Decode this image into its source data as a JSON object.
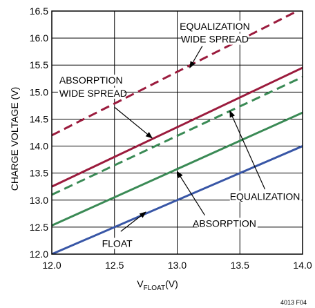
{
  "chart_data": {
    "type": "line",
    "xlabel": "V",
    "xlabel_sub": "FLOAT",
    "xlabel_unit": "(V)",
    "ylabel": "CHARGE VOLTAGE (V)",
    "xlim": [
      12.0,
      14.0
    ],
    "ylim": [
      12.0,
      16.5
    ],
    "grid": true,
    "x_ticks": [
      12.0,
      12.5,
      13.0,
      13.5,
      14.0
    ],
    "x_tick_labels": [
      "12.0",
      "12.5",
      "13.0",
      "13.5",
      "14.0"
    ],
    "y_ticks": [
      12.0,
      12.5,
      13.0,
      13.5,
      14.0,
      14.5,
      15.0,
      15.5,
      16.0,
      16.5
    ],
    "y_tick_labels": [
      "12.0",
      "12.5",
      "13.0",
      "13.5",
      "14.0",
      "14.5",
      "15.0",
      "15.5",
      "16.0",
      "16.5"
    ],
    "series": [
      {
        "key": "equalization-wide-spread",
        "x": [
          12.0,
          14.0
        ],
        "y": [
          14.2,
          16.55
        ],
        "color": "#9b1b3d",
        "dash": true
      },
      {
        "key": "absorption-wide-spread",
        "x": [
          12.0,
          14.0
        ],
        "y": [
          13.25,
          15.45
        ],
        "color": "#9b1b3d",
        "dash": false
      },
      {
        "key": "equalization",
        "x": [
          12.0,
          14.0
        ],
        "y": [
          13.1,
          15.28
        ],
        "color": "#3a8a55",
        "dash": true
      },
      {
        "key": "absorption",
        "x": [
          12.0,
          14.0
        ],
        "y": [
          12.53,
          14.62
        ],
        "color": "#3a8a55",
        "dash": false
      },
      {
        "key": "float",
        "x": [
          12.0,
          14.0
        ],
        "y": [
          12.0,
          14.0
        ],
        "color": "#3856a6",
        "dash": false
      }
    ],
    "annotations": [
      {
        "key": "equalization-wide-spread",
        "lines": [
          "EQUALIZATION",
          "WIDE SPREAD"
        ],
        "text_x": 13.3,
        "text_y": [
          16.22,
          15.98
        ],
        "anchor": "middle",
        "arrow_from": [
          13.2,
          15.85
        ],
        "arrow_to": [
          13.1,
          15.45
        ]
      },
      {
        "key": "absorption-wide-spread",
        "lines": [
          "ABSORPTION",
          "WIDE SPREAD"
        ],
        "text_x": 12.06,
        "text_y": [
          15.22,
          14.98
        ],
        "anchor": "start",
        "arrow_from": [
          12.5,
          14.72
        ],
        "arrow_to": [
          12.8,
          14.15
        ]
      },
      {
        "key": "equalization",
        "lines": [
          "EQUALIZATION"
        ],
        "text_x": 13.98,
        "text_y": [
          13.07
        ],
        "anchor": "end",
        "arrow_from": [
          13.7,
          13.2
        ],
        "arrow_to": [
          13.42,
          14.65
        ]
      },
      {
        "key": "absorption",
        "lines": [
          "ABSORPTION"
        ],
        "text_x": 13.63,
        "text_y": [
          12.57
        ],
        "anchor": "end",
        "arrow_from": [
          13.22,
          12.72
        ],
        "arrow_to": [
          13.0,
          13.53
        ]
      },
      {
        "key": "float",
        "lines": [
          "FLOAT"
        ],
        "text_x": 12.4,
        "text_y": [
          12.2
        ],
        "anchor": "start",
        "arrow_from": [
          12.55,
          12.42
        ],
        "arrow_to": [
          12.75,
          12.78
        ]
      }
    ],
    "figure_code": "4013 F04"
  }
}
